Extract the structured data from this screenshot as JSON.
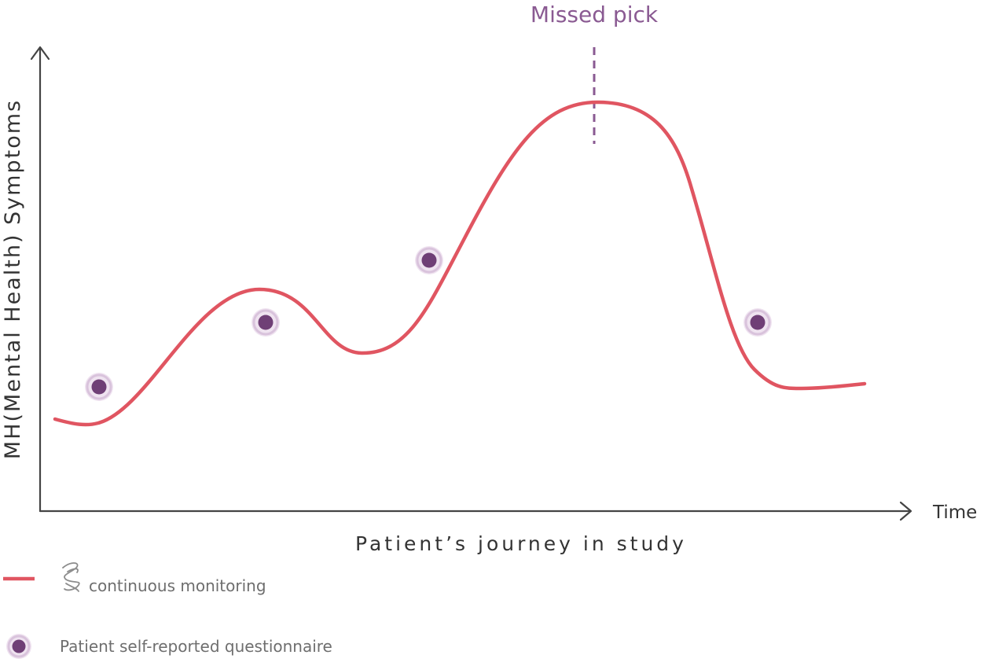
{
  "annotation": {
    "label": "Missed pick"
  },
  "axes": {
    "y_label": "MH(Mental Health) Symptoms",
    "x_end_label": "Time",
    "x_label": "Patient’s journey in study"
  },
  "legend": {
    "line_label": "continuous monitoring",
    "dot_label": "Patient self-reported questionnaire",
    "line_icon": "wave-logo-icon"
  },
  "colors": {
    "monitoring_line": "#e05561",
    "questionnaire_dot": "#6f3f76",
    "questionnaire_halo": "#d9c3dc",
    "annotation": "#8a5a92",
    "axis": "#444444"
  }
}
